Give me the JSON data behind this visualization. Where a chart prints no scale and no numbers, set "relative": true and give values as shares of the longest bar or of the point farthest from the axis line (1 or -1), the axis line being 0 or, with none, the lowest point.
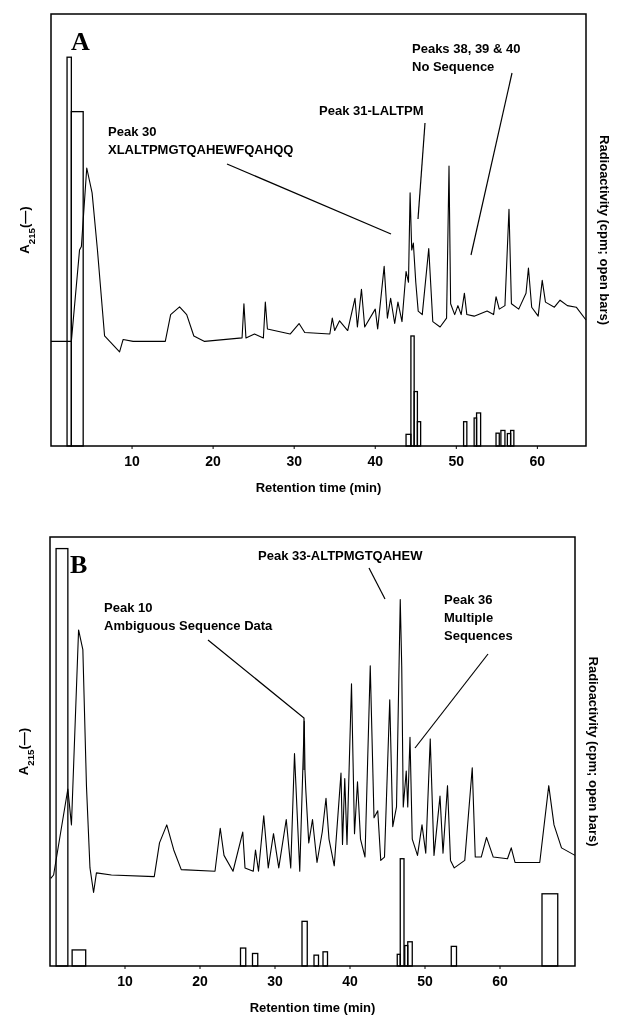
{
  "chart_data": [
    {
      "type": "line",
      "title": "A",
      "xlabel": "Retention time (min)",
      "ylabel": "A$_{215}$(—)",
      "y2label": "Radioactivity (cpm; open bars)",
      "relative": true,
      "xlim": [
        0,
        66
      ],
      "xticks": [
        10,
        20,
        30,
        40,
        50,
        60
      ],
      "grid": false,
      "series": [
        {
          "type": "histogram",
          "color": "#000000",
          "bins": [
            1.98,
            2.51,
            3.97,
            43.8,
            44.4,
            44.8,
            45.2,
            45.6,
            50.9,
            51.3,
            52.2,
            52.5,
            53.0,
            54.9,
            55.3,
            55.5,
            56.0,
            56.3,
            56.7,
            57.1
          ],
          "values": [
            1.0,
            0.86,
            0,
            0.03,
            0.283,
            0.14,
            0.0625,
            0,
            0.0625,
            0,
            0.072,
            0.085,
            0,
            0.033,
            0,
            0.04,
            0,
            0.032,
            0.04
          ]
        },
        {
          "color": "#000000",
          "x": [
            0,
            2.51,
            3.52,
            3.75,
            4.41,
            5.07,
            5.73,
            6.61,
            8.46,
            8.9,
            10.13,
            14.1,
            14.76,
            15.86,
            16.74,
            17.62,
            18.95,
            23.57,
            23.8,
            24.05,
            25.1,
            26.2,
            26.44,
            26.7,
            29.5,
            30.6,
            31.3,
            34.4,
            34.7,
            35.0,
            35.6,
            36.6,
            37.5,
            37.8,
            38.3,
            38.7,
            40.0,
            40.3,
            41.1,
            41.5,
            41.9,
            42.4,
            42.8,
            43.3,
            43.8,
            44.1,
            44.3,
            44.5,
            44.7,
            45.0,
            45.3,
            45.8,
            46.6,
            47.1,
            48.0,
            48.8,
            49.1,
            49.3,
            49.8,
            50.2,
            50.6,
            51.0,
            51.3,
            52.2,
            53.8,
            54.6,
            54.9,
            55.3,
            56.0,
            56.5,
            56.8,
            57.7,
            58.6,
            58.9,
            59.3,
            60.1,
            60.6,
            61.0,
            62.1,
            62.8,
            63.7,
            64.8,
            66.0
          ],
          "values": [
            0.269,
            0.269,
            0.504,
            0.513,
            0.715,
            0.651,
            0.504,
            0.283,
            0.242,
            0.274,
            0.269,
            0.269,
            0.338,
            0.358,
            0.338,
            0.283,
            0.269,
            0.278,
            0.366,
            0.278,
            0.288,
            0.278,
            0.37,
            0.301,
            0.288,
            0.315,
            0.292,
            0.288,
            0.329,
            0.297,
            0.322,
            0.297,
            0.38,
            0.306,
            0.403,
            0.306,
            0.352,
            0.301,
            0.462,
            0.329,
            0.38,
            0.315,
            0.37,
            0.32,
            0.449,
            0.421,
            0.651,
            0.504,
            0.522,
            0.421,
            0.347,
            0.338,
            0.508,
            0.32,
            0.306,
            0.329,
            0.72,
            0.366,
            0.338,
            0.361,
            0.338,
            0.393,
            0.338,
            0.334,
            0.347,
            0.338,
            0.384,
            0.352,
            0.361,
            0.609,
            0.366,
            0.352,
            0.393,
            0.458,
            0.357,
            0.334,
            0.426,
            0.37,
            0.357,
            0.375,
            0.361,
            0.357,
            0.324
          ]
        }
      ],
      "annotations": [
        "Peak 30\nXLALTPMGTQAHEWFQAHQQ",
        "Peak 31-LALTPM",
        "Peaks 38, 39 & 40\nNo Sequence"
      ]
    },
    {
      "type": "line",
      "title": "B",
      "xlabel": "Retention time (min)",
      "ylabel": "A$_{215}$(—)",
      "y2label": "Radioactivity (cpm; open bars)",
      "relative": true,
      "xlim": [
        0,
        70
      ],
      "xticks": [
        10,
        20,
        30,
        40,
        50,
        60
      ],
      "grid": false,
      "series": [
        {
          "type": "histogram",
          "color": "#000000",
          "bins": [
            0.81,
            2.38,
            2.95,
            4.76,
            25.4,
            26.1,
            27.0,
            27.7,
            33.6,
            34.3,
            35.2,
            35.8,
            36.4,
            37.0,
            46.3,
            46.7,
            47.2,
            47.3,
            47.7,
            48.3,
            53.5,
            54.2,
            65.6,
            67.7
          ],
          "values": [
            1.0,
            0,
            0.0385,
            0,
            0.043,
            0,
            0.03,
            0,
            0.107,
            0,
            0.026,
            0,
            0.034,
            0,
            0.028,
            0.257,
            0,
            0.049,
            0.058,
            0,
            0.047,
            0,
            0.173
          ]
        },
        {
          "color": "#000000",
          "x": [
            0.1,
            0.48,
            2.38,
            2.86,
            3.81,
            4.38,
            4.86,
            5.33,
            5.81,
            6.19,
            8.19,
            13.9,
            14.6,
            15.57,
            16.5,
            17.5,
            22.0,
            22.7,
            23.2,
            24.4,
            25.7,
            26.0,
            27.1,
            27.4,
            27.8,
            28.5,
            29.1,
            29.8,
            30.5,
            31.5,
            32.1,
            32.6,
            33.3,
            33.9,
            34.0,
            34.1,
            34.5,
            35.0,
            35.6,
            36.3,
            36.8,
            37.2,
            37.9,
            38.8,
            39.0,
            39.3,
            39.6,
            40.2,
            40.6,
            41.0,
            41.4,
            42.0,
            42.7,
            43.2,
            43.7,
            44.1,
            44.6,
            45.3,
            45.7,
            46.2,
            46.7,
            46.9,
            47.1,
            47.5,
            47.7,
            48.0,
            48.3,
            49.0,
            49.6,
            50.1,
            50.7,
            51.2,
            52.0,
            52.4,
            53.0,
            53.4,
            53.9,
            55.3,
            56.3,
            56.7,
            57.5,
            58.2,
            59.1,
            61.0,
            61.5,
            62.0,
            65.3,
            66.5,
            67.2,
            68.2,
            70.0
          ],
          "values": [
            0.21,
            0.218,
            0.424,
            0.338,
            0.805,
            0.758,
            0.432,
            0.235,
            0.176,
            0.223,
            0.218,
            0.214,
            0.295,
            0.338,
            0.278,
            0.231,
            0.227,
            0.33,
            0.265,
            0.227,
            0.321,
            0.235,
            0.227,
            0.278,
            0.227,
            0.36,
            0.235,
            0.317,
            0.235,
            0.351,
            0.235,
            0.509,
            0.227,
            0.586,
            0.467,
            0.424,
            0.295,
            0.351,
            0.248,
            0.321,
            0.402,
            0.304,
            0.24,
            0.462,
            0.291,
            0.449,
            0.291,
            0.676,
            0.317,
            0.441,
            0.304,
            0.261,
            0.719,
            0.355,
            0.372,
            0.253,
            0.261,
            0.638,
            0.334,
            0.381,
            0.878,
            0.715,
            0.381,
            0.467,
            0.381,
            0.548,
            0.304,
            0.265,
            0.338,
            0.27,
            0.544,
            0.265,
            0.407,
            0.27,
            0.432,
            0.253,
            0.235,
            0.253,
            0.475,
            0.261,
            0.261,
            0.308,
            0.261,
            0.257,
            0.283,
            0.248,
            0.248,
            0.432,
            0.338,
            0.283,
            0.265
          ]
        }
      ],
      "annotations": [
        "Peak 10\nAmbiguous Sequence Data",
        "Peak 33-ALTPMGTQAHEW",
        "Peak 36\nMultiple\nSequences"
      ]
    }
  ]
}
